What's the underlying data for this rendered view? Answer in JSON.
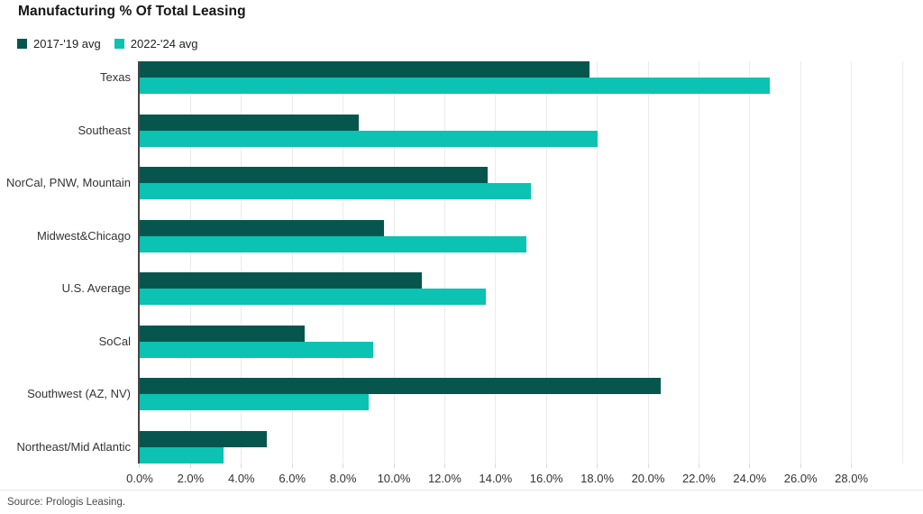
{
  "title": "Manufacturing % Of Total Leasing",
  "source": "Source: Prologis Leasing.",
  "legend": {
    "items": [
      {
        "label": "2017-'19 avg",
        "color": "#07564d"
      },
      {
        "label": "2022-'24 avg",
        "color": "#0cc2b2"
      }
    ]
  },
  "chart_data": {
    "type": "bar",
    "orientation": "horizontal",
    "title": "Manufacturing % Of Total Leasing",
    "categories": [
      "Texas",
      "Southeast",
      "NorCal, PNW, Mountain",
      "Midwest&Chicago",
      "U.S. Average",
      "SoCal",
      "Southwest (AZ, NV)",
      "Northeast/Mid Atlantic"
    ],
    "series": [
      {
        "name": "2017-'19 avg",
        "color": "#07564d",
        "values": [
          17.7,
          8.6,
          13.7,
          9.6,
          11.1,
          6.5,
          20.5,
          5.0
        ]
      },
      {
        "name": "2022-'24 avg",
        "color": "#0cc2b2",
        "values": [
          24.8,
          18.0,
          15.4,
          15.2,
          13.6,
          9.2,
          9.0,
          3.3
        ]
      }
    ],
    "xlabel": "",
    "ylabel": "",
    "xlim": [
      0,
      30
    ],
    "x_ticks": [
      0,
      2,
      4,
      6,
      8,
      10,
      12,
      14,
      16,
      18,
      20,
      22,
      24,
      26,
      28
    ],
    "x_tick_labels": [
      "0.0%",
      "2.0%",
      "4.0%",
      "6.0%",
      "8.0%",
      "10.0%",
      "12.0%",
      "14.0%",
      "16.0%",
      "18.0%",
      "20.0%",
      "22.0%",
      "24.0%",
      "26.0%",
      "28.0%"
    ],
    "gridline_values": [
      2,
      4,
      6,
      8,
      10,
      12,
      14,
      16,
      18,
      20,
      22,
      24,
      26,
      28,
      30
    ],
    "grid": true,
    "legend_position": "top-left"
  }
}
